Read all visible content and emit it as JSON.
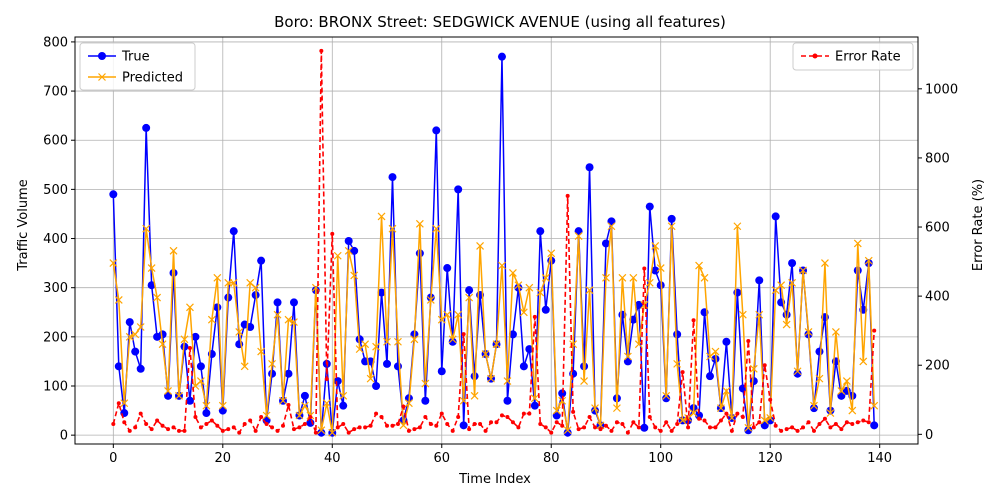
{
  "chart_data": {
    "type": "line",
    "title": "Boro: BRONX Street: SEDGWICK AVENUE (using all features)",
    "xlabel": "Time Index",
    "ylabel": "Traffic Volume",
    "y2label": "Error Rate (%)",
    "xlim": [
      -7,
      147
    ],
    "ylim": [
      -18,
      810
    ],
    "y2lim": [
      -28,
      1150
    ],
    "xticks": [
      0,
      20,
      40,
      60,
      80,
      100,
      120,
      140
    ],
    "yticks": [
      0,
      100,
      200,
      300,
      400,
      500,
      600,
      700,
      800
    ],
    "y2ticks": [
      0,
      200,
      400,
      600,
      800,
      1000
    ],
    "grid": true,
    "legend_left": [
      "True",
      "Predicted"
    ],
    "legend_right": [
      "Error Rate"
    ],
    "legend_left_position": "upper left",
    "legend_right_position": "upper right",
    "colors": {
      "true": "#0000ff",
      "predicted": "#ffa500",
      "error": "#ff0000"
    },
    "series": [
      {
        "name": "True",
        "axis": "left",
        "values": [
          490,
          140,
          45,
          230,
          170,
          135,
          625,
          305,
          200,
          205,
          80,
          330,
          80,
          180,
          70,
          200,
          140,
          45,
          165,
          260,
          50,
          280,
          415,
          185,
          225,
          220,
          285,
          355,
          30,
          125,
          270,
          70,
          125,
          270,
          40,
          80,
          25,
          295,
          5,
          145,
          5,
          110,
          60,
          395,
          375,
          195,
          150,
          150,
          100,
          290,
          145,
          525,
          140,
          30,
          75,
          205,
          370,
          70,
          280,
          620,
          130,
          340,
          190,
          500,
          20,
          295,
          120,
          285,
          165,
          115,
          185,
          770,
          70,
          205,
          300,
          140,
          175,
          60,
          415,
          255,
          355,
          40,
          85,
          5,
          125,
          415,
          140,
          545,
          50,
          20,
          390,
          435,
          75,
          245,
          150,
          235,
          265,
          15,
          465,
          335,
          305,
          75,
          440,
          205,
          30,
          30,
          55,
          40,
          250,
          120,
          155,
          55,
          190,
          35,
          290,
          95,
          10,
          110,
          315,
          20,
          30,
          445,
          270,
          245,
          350,
          125,
          335,
          205,
          55,
          170,
          240,
          50,
          150,
          80,
          90,
          80,
          335,
          255,
          350,
          20
        ]
      },
      {
        "name": "Predicted",
        "axis": "left",
        "values": [
          350,
          275,
          65,
          200,
          205,
          220,
          420,
          340,
          280,
          185,
          90,
          375,
          80,
          195,
          260,
          100,
          110,
          60,
          235,
          320,
          60,
          310,
          310,
          210,
          140,
          310,
          300,
          170,
          40,
          145,
          245,
          70,
          235,
          230,
          40,
          60,
          40,
          300,
          10,
          65,
          5,
          365,
          80,
          375,
          325,
          175,
          185,
          115,
          180,
          445,
          190,
          420,
          190,
          20,
          65,
          195,
          430,
          105,
          275,
          420,
          235,
          245,
          195,
          245,
          70,
          280,
          80,
          385,
          165,
          115,
          185,
          345,
          110,
          330,
          305,
          250,
          300,
          75,
          290,
          320,
          370,
          50,
          70,
          10,
          185,
          405,
          110,
          295,
          55,
          20,
          320,
          425,
          55,
          320,
          160,
          320,
          185,
          265,
          310,
          385,
          340,
          80,
          425,
          145,
          30,
          35,
          45,
          345,
          320,
          160,
          170,
          55,
          90,
          35,
          425,
          245,
          15,
          135,
          245,
          30,
          35,
          295,
          305,
          225,
          310,
          130,
          335,
          210,
          60,
          115,
          350,
          45,
          210,
          90,
          110,
          50,
          390,
          150,
          355,
          60
        ]
      },
      {
        "name": "Error Rate",
        "axis": "right",
        "values": [
          30,
          90,
          35,
          10,
          20,
          60,
          30,
          15,
          40,
          25,
          15,
          20,
          10,
          10,
          250,
          50,
          20,
          30,
          40,
          25,
          10,
          15,
          20,
          5,
          30,
          40,
          10,
          50,
          30,
          20,
          10,
          25,
          85,
          15,
          20,
          30,
          50,
          5,
          1110,
          160,
          580,
          20,
          30,
          5,
          15,
          20,
          20,
          25,
          60,
          50,
          25,
          25,
          30,
          80,
          10,
          15,
          20,
          50,
          30,
          25,
          60,
          30,
          10,
          50,
          290,
          15,
          30,
          30,
          10,
          35,
          35,
          55,
          50,
          35,
          20,
          60,
          60,
          340,
          30,
          20,
          5,
          35,
          25,
          690,
          65,
          15,
          20,
          50,
          20,
          15,
          25,
          10,
          35,
          30,
          5,
          35,
          20,
          480,
          50,
          20,
          10,
          35,
          10,
          30,
          180,
          20,
          330,
          45,
          40,
          20,
          20,
          40,
          60,
          10,
          60,
          50,
          270,
          20,
          35,
          200,
          100,
          25,
          10,
          15,
          20,
          10,
          20,
          35,
          10,
          30,
          45,
          20,
          30,
          15,
          35,
          30,
          35,
          40,
          35,
          300
        ]
      }
    ]
  }
}
